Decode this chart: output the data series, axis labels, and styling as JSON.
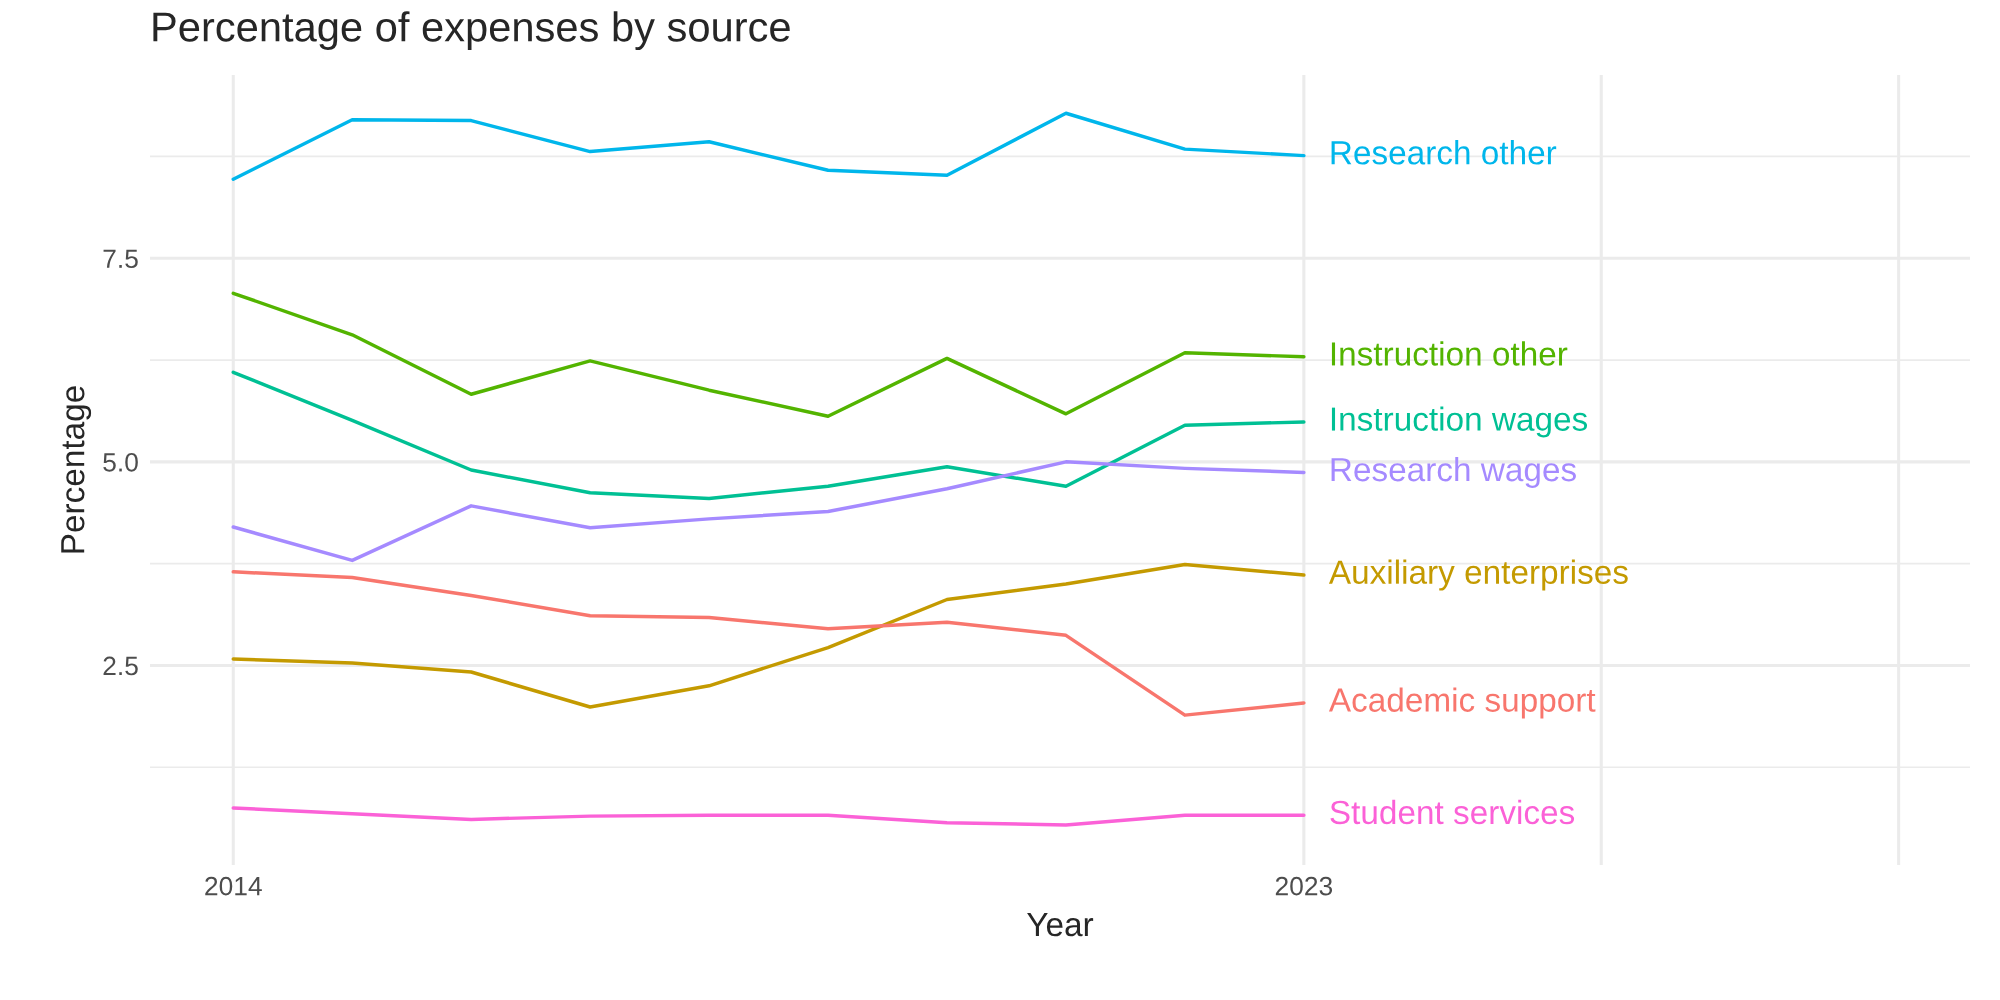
{
  "chart_data": {
    "type": "line",
    "title": "Percentage of expenses by source",
    "xlabel": "Year",
    "ylabel": "Percentage",
    "x": [
      2014,
      2015,
      2016,
      2017,
      2018,
      2019,
      2020,
      2021,
      2022,
      2023
    ],
    "xlim": [
      2013.3,
      2028.6
    ],
    "xticks": [
      2014,
      2023,
      {
        "value": 2025.5,
        "label": null
      },
      {
        "value": 2028,
        "label": null
      }
    ],
    "ylim": [
      0.05,
      9.75
    ],
    "yticks": [
      2.5,
      {
        "value": 5,
        "label": "5.0"
      },
      7.5
    ],
    "grid": true,
    "legend": false,
    "marker": "none",
    "line_style": "solid",
    "series": [
      {
        "name": "Research other",
        "color": "#00b6eb",
        "values": [
          8.47,
          9.2,
          9.19,
          8.81,
          8.93,
          8.58,
          8.52,
          9.28,
          8.84,
          8.76
        ]
      },
      {
        "name": "Instruction other",
        "color": "#53b400",
        "values": [
          7.07,
          6.56,
          5.83,
          6.24,
          5.88,
          5.56,
          6.27,
          5.59,
          6.34,
          6.29
        ]
      },
      {
        "name": "Instruction wages",
        "color": "#00c094",
        "values": [
          6.1,
          5.51,
          4.9,
          4.62,
          4.55,
          4.7,
          4.94,
          4.7,
          5.45,
          5.49
        ]
      },
      {
        "name": "Research wages",
        "color": "#a58aff",
        "values": [
          4.2,
          3.79,
          4.46,
          4.19,
          4.3,
          4.39,
          4.67,
          5.0,
          4.92,
          4.87
        ]
      },
      {
        "name": "Auxiliary enterprises",
        "color": "#c49a00",
        "values": [
          2.58,
          2.53,
          2.42,
          1.99,
          2.25,
          2.72,
          3.31,
          3.5,
          3.74,
          3.61
        ]
      },
      {
        "name": "Academic support",
        "color": "#f8766d",
        "values": [
          3.65,
          3.58,
          3.36,
          3.11,
          3.09,
          2.95,
          3.03,
          2.87,
          1.89,
          2.04
        ]
      },
      {
        "name": "Student services",
        "color": "#fb61d7",
        "values": [
          0.75,
          0.68,
          0.61,
          0.65,
          0.66,
          0.66,
          0.57,
          0.54,
          0.66,
          0.66
        ]
      }
    ]
  }
}
